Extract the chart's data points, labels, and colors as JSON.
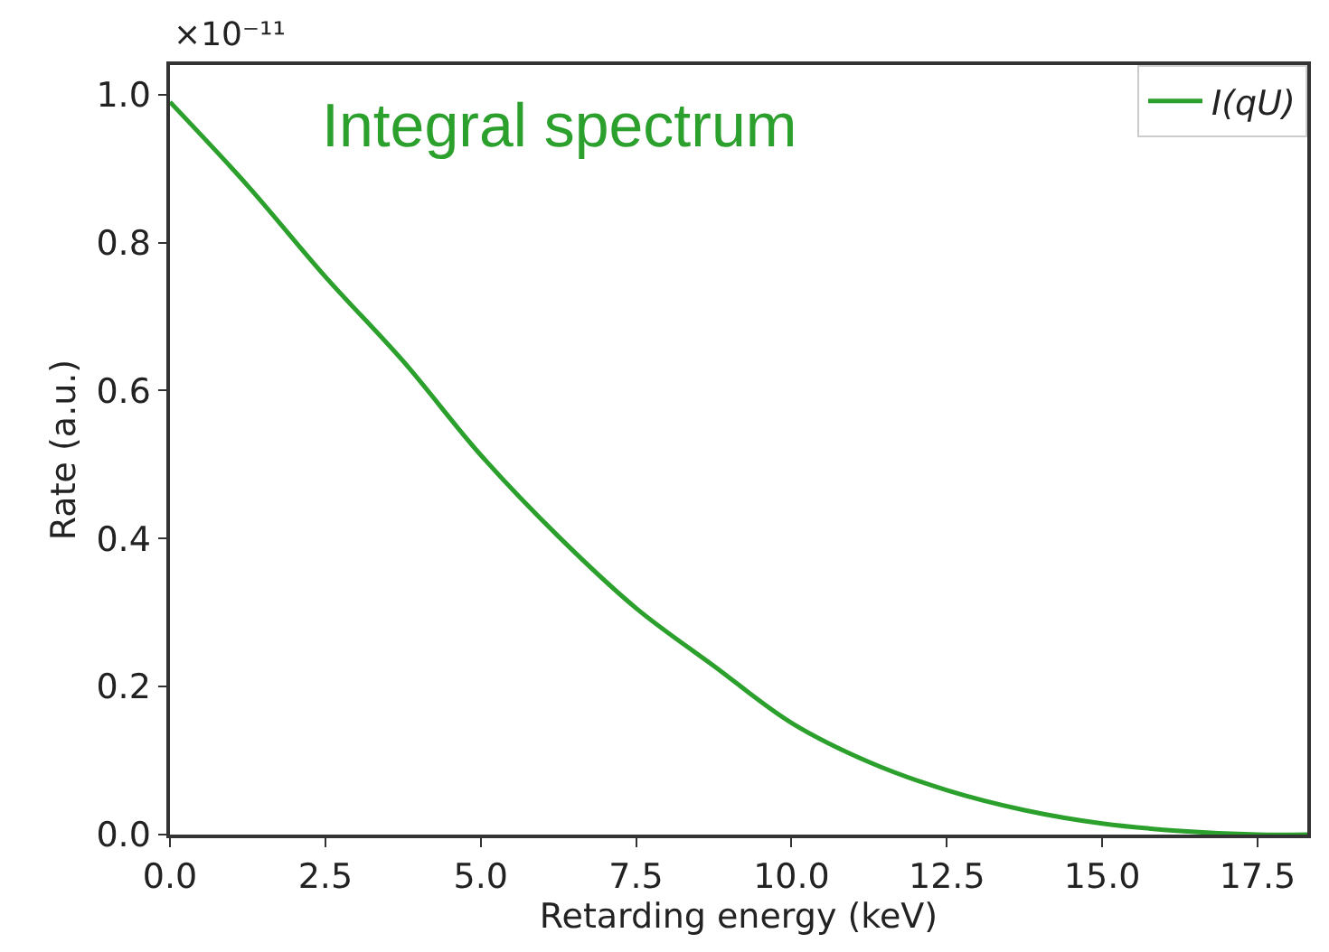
{
  "chart_data": {
    "type": "line",
    "title": "Integral spectrum",
    "xlabel": "Retarding energy (keV)",
    "ylabel": "Rate (a.u.)",
    "annotations": [
      "×10⁻¹¹"
    ],
    "x": [
      0,
      1.25,
      2.5,
      3.75,
      5.0,
      6.25,
      7.5,
      8.75,
      10.0,
      11.25,
      12.5,
      13.75,
      15.0,
      16.25,
      17.5,
      18.3
    ],
    "series": [
      {
        "name": "I(qU)",
        "color": "#2ca02c",
        "values": [
          0.99,
          0.877,
          0.754,
          0.64,
          0.513,
          0.403,
          0.306,
          0.228,
          0.151,
          0.098,
          0.06,
          0.033,
          0.015,
          0.005,
          0.0,
          0.0
        ]
      }
    ],
    "xlim": [
      0,
      18.3
    ],
    "xticks": [
      {
        "value": 0,
        "label": "0.0"
      },
      2.5,
      {
        "value": 5,
        "label": "5.0"
      },
      7.5,
      {
        "value": 10,
        "label": "10.0"
      },
      12.5,
      {
        "value": 15,
        "label": "15.0"
      },
      17.5
    ],
    "ylim": [
      0,
      1.04
    ],
    "yticks": [
      {
        "value": 0,
        "label": "0.0"
      },
      0.2,
      0.4,
      0.6,
      0.8,
      {
        "value": 1,
        "label": "1.0"
      }
    ],
    "legend": "top right",
    "marker": "none",
    "line_style": "solid"
  }
}
